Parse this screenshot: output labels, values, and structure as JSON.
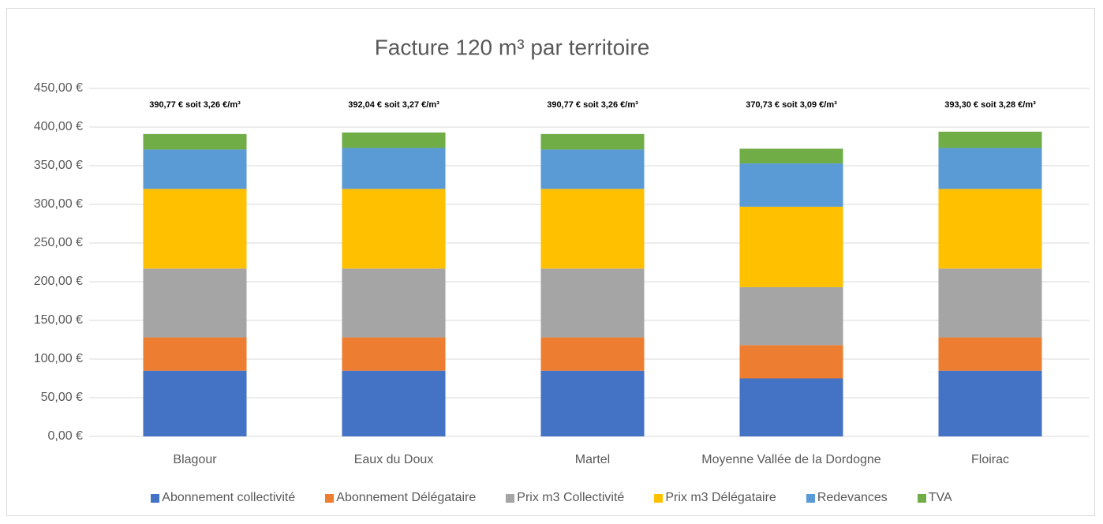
{
  "chart_data": {
    "type": "stacked_bar",
    "title": "Facture 120 m³ par territoire",
    "categories": [
      "Blagour",
      "Eaux du Doux",
      "Martel",
      "Moyenne Vallée de la Dordogne",
      "Floirac"
    ],
    "series": [
      {
        "name": "Abonnement collectivité",
        "color": "#4472c4",
        "values": [
          85,
          85,
          85,
          75,
          85
        ]
      },
      {
        "name": "Abonnement Délégataire",
        "color": "#ed7d31",
        "values": [
          43,
          43,
          43,
          43,
          43
        ]
      },
      {
        "name": "Prix m3 Collectivité",
        "color": "#a5a5a5",
        "values": [
          89,
          89,
          89,
          75,
          89
        ]
      },
      {
        "name": "Prix m3 Délégataire",
        "color": "#ffc000",
        "values": [
          103,
          103,
          103,
          104,
          103
        ]
      },
      {
        "name": "Redevances",
        "color": "#5b9bd5",
        "values": [
          51,
          53,
          51,
          56,
          53
        ]
      },
      {
        "name": "TVA",
        "color": "#70ad47",
        "values": [
          20,
          20,
          20,
          19,
          21
        ]
      }
    ],
    "total_labels": [
      "390,77 € soit 3,26 €/m³",
      "392,04 € soit 3,27 €/m³",
      "390,77 € soit 3,26 €/m³",
      "370,73 € soit 3,09  €/m³",
      "393,30 € soit 3,28 €/m³"
    ],
    "ylim": [
      0,
      450
    ],
    "yticks": [
      {
        "value": 0,
        "label": "0,00 €"
      },
      {
        "value": 50,
        "label": "50,00 €"
      },
      {
        "value": 100,
        "label": "100,00 €"
      },
      {
        "value": 150,
        "label": "150,00 €"
      },
      {
        "value": 200,
        "label": "200,00 €"
      },
      {
        "value": 250,
        "label": "250,00 €"
      },
      {
        "value": 300,
        "label": "300,00 €"
      },
      {
        "value": 350,
        "label": "350,00 €"
      },
      {
        "value": 400,
        "label": "400,00 €"
      },
      {
        "value": 450,
        "label": "450,00 €"
      }
    ],
    "grid": true,
    "legend": "bottom"
  }
}
